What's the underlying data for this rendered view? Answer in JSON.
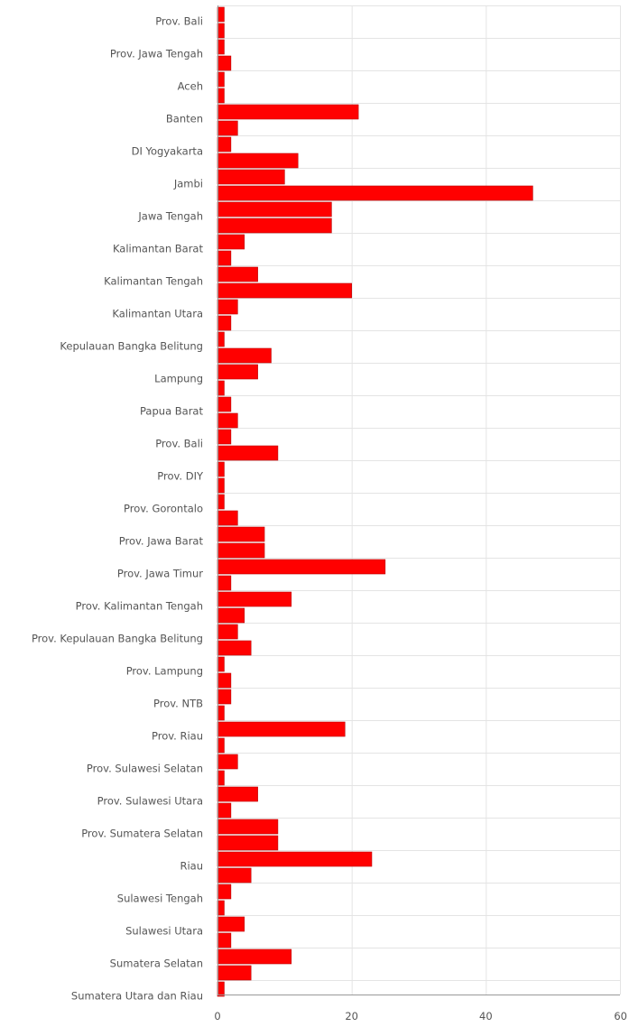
{
  "chart_data": {
    "type": "bar",
    "orientation": "horizontal",
    "title": "",
    "xlabel": "",
    "ylabel": "",
    "xlim": [
      0,
      60
    ],
    "x_ticks": [
      "0",
      "20",
      "40",
      "60"
    ],
    "grid": true,
    "bar_color": "#ff0000",
    "bar_border_color": "#b80000",
    "categories": [
      {
        "label": "Prov. Bali",
        "bars": [
          1,
          1
        ]
      },
      {
        "label": "Prov. Jawa Tengah",
        "bars": [
          1,
          2
        ]
      },
      {
        "label": "Aceh",
        "bars": [
          1,
          1
        ]
      },
      {
        "label": "Banten",
        "bars": [
          21,
          3
        ]
      },
      {
        "label": "DI Yogyakarta",
        "bars": [
          2,
          12
        ]
      },
      {
        "label": "Jambi",
        "bars": [
          10,
          47
        ]
      },
      {
        "label": "Jawa Tengah",
        "bars": [
          17,
          17
        ]
      },
      {
        "label": "Kalimantan Barat",
        "bars": [
          4,
          2
        ]
      },
      {
        "label": "Kalimantan Tengah",
        "bars": [
          6,
          20
        ]
      },
      {
        "label": "Kalimantan Utara",
        "bars": [
          3,
          2
        ]
      },
      {
        "label": "Kepulauan Bangka Belitung",
        "bars": [
          1,
          8
        ]
      },
      {
        "label": "Lampung",
        "bars": [
          6,
          1
        ]
      },
      {
        "label": "Papua Barat",
        "bars": [
          2,
          3
        ]
      },
      {
        "label": "Prov. Bali",
        "bars": [
          2,
          9
        ]
      },
      {
        "label": "Prov. DIY",
        "bars": [
          1,
          1
        ]
      },
      {
        "label": "Prov. Gorontalo",
        "bars": [
          1,
          3
        ]
      },
      {
        "label": "Prov. Jawa Barat",
        "bars": [
          7,
          7
        ]
      },
      {
        "label": "Prov. Jawa Timur",
        "bars": [
          25,
          2
        ]
      },
      {
        "label": "Prov. Kalimantan Tengah",
        "bars": [
          11,
          4
        ]
      },
      {
        "label": "Prov. Kepulauan Bangka Belitung",
        "bars": [
          3,
          5
        ]
      },
      {
        "label": "Prov. Lampung",
        "bars": [
          1,
          2
        ]
      },
      {
        "label": "Prov. NTB",
        "bars": [
          2,
          1
        ]
      },
      {
        "label": "Prov. Riau",
        "bars": [
          19,
          1
        ]
      },
      {
        "label": "Prov. Sulawesi Selatan",
        "bars": [
          3,
          1
        ]
      },
      {
        "label": "Prov. Sulawesi Utara",
        "bars": [
          6,
          2
        ]
      },
      {
        "label": "Prov. Sumatera Selatan",
        "bars": [
          9,
          9
        ]
      },
      {
        "label": "Riau",
        "bars": [
          23,
          5
        ]
      },
      {
        "label": "Sulawesi Tengah",
        "bars": [
          2,
          1
        ]
      },
      {
        "label": "Sulawesi Utara",
        "bars": [
          4,
          2
        ]
      },
      {
        "label": "Sumatera Selatan",
        "bars": [
          11,
          5
        ]
      },
      {
        "label": "Sumatera Utara dan Riau",
        "bars": [
          1
        ]
      }
    ]
  }
}
